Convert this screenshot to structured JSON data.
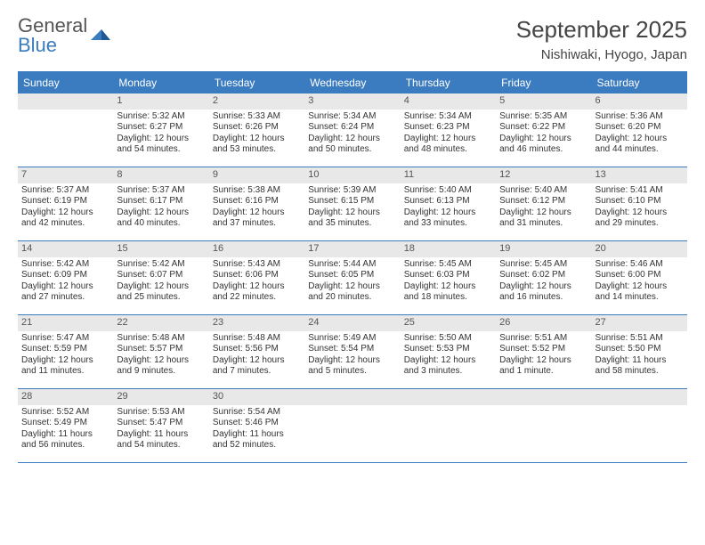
{
  "brand": {
    "word1": "General",
    "word2": "Blue"
  },
  "title": "September 2025",
  "location": "Nishiwaki, Hyogo, Japan",
  "colors": {
    "accent": "#3b7bbf",
    "daynum_bg": "#e8e8e8",
    "text": "#333333",
    "header_text": "#444444"
  },
  "weekdays": [
    "Sunday",
    "Monday",
    "Tuesday",
    "Wednesday",
    "Thursday",
    "Friday",
    "Saturday"
  ],
  "weeks": [
    [
      null,
      {
        "n": "1",
        "sr": "Sunrise: 5:32 AM",
        "ss": "Sunset: 6:27 PM",
        "dl1": "Daylight: 12 hours",
        "dl2": "and 54 minutes."
      },
      {
        "n": "2",
        "sr": "Sunrise: 5:33 AM",
        "ss": "Sunset: 6:26 PM",
        "dl1": "Daylight: 12 hours",
        "dl2": "and 53 minutes."
      },
      {
        "n": "3",
        "sr": "Sunrise: 5:34 AM",
        "ss": "Sunset: 6:24 PM",
        "dl1": "Daylight: 12 hours",
        "dl2": "and 50 minutes."
      },
      {
        "n": "4",
        "sr": "Sunrise: 5:34 AM",
        "ss": "Sunset: 6:23 PM",
        "dl1": "Daylight: 12 hours",
        "dl2": "and 48 minutes."
      },
      {
        "n": "5",
        "sr": "Sunrise: 5:35 AM",
        "ss": "Sunset: 6:22 PM",
        "dl1": "Daylight: 12 hours",
        "dl2": "and 46 minutes."
      },
      {
        "n": "6",
        "sr": "Sunrise: 5:36 AM",
        "ss": "Sunset: 6:20 PM",
        "dl1": "Daylight: 12 hours",
        "dl2": "and 44 minutes."
      }
    ],
    [
      {
        "n": "7",
        "sr": "Sunrise: 5:37 AM",
        "ss": "Sunset: 6:19 PM",
        "dl1": "Daylight: 12 hours",
        "dl2": "and 42 minutes."
      },
      {
        "n": "8",
        "sr": "Sunrise: 5:37 AM",
        "ss": "Sunset: 6:17 PM",
        "dl1": "Daylight: 12 hours",
        "dl2": "and 40 minutes."
      },
      {
        "n": "9",
        "sr": "Sunrise: 5:38 AM",
        "ss": "Sunset: 6:16 PM",
        "dl1": "Daylight: 12 hours",
        "dl2": "and 37 minutes."
      },
      {
        "n": "10",
        "sr": "Sunrise: 5:39 AM",
        "ss": "Sunset: 6:15 PM",
        "dl1": "Daylight: 12 hours",
        "dl2": "and 35 minutes."
      },
      {
        "n": "11",
        "sr": "Sunrise: 5:40 AM",
        "ss": "Sunset: 6:13 PM",
        "dl1": "Daylight: 12 hours",
        "dl2": "and 33 minutes."
      },
      {
        "n": "12",
        "sr": "Sunrise: 5:40 AM",
        "ss": "Sunset: 6:12 PM",
        "dl1": "Daylight: 12 hours",
        "dl2": "and 31 minutes."
      },
      {
        "n": "13",
        "sr": "Sunrise: 5:41 AM",
        "ss": "Sunset: 6:10 PM",
        "dl1": "Daylight: 12 hours",
        "dl2": "and 29 minutes."
      }
    ],
    [
      {
        "n": "14",
        "sr": "Sunrise: 5:42 AM",
        "ss": "Sunset: 6:09 PM",
        "dl1": "Daylight: 12 hours",
        "dl2": "and 27 minutes."
      },
      {
        "n": "15",
        "sr": "Sunrise: 5:42 AM",
        "ss": "Sunset: 6:07 PM",
        "dl1": "Daylight: 12 hours",
        "dl2": "and 25 minutes."
      },
      {
        "n": "16",
        "sr": "Sunrise: 5:43 AM",
        "ss": "Sunset: 6:06 PM",
        "dl1": "Daylight: 12 hours",
        "dl2": "and 22 minutes."
      },
      {
        "n": "17",
        "sr": "Sunrise: 5:44 AM",
        "ss": "Sunset: 6:05 PM",
        "dl1": "Daylight: 12 hours",
        "dl2": "and 20 minutes."
      },
      {
        "n": "18",
        "sr": "Sunrise: 5:45 AM",
        "ss": "Sunset: 6:03 PM",
        "dl1": "Daylight: 12 hours",
        "dl2": "and 18 minutes."
      },
      {
        "n": "19",
        "sr": "Sunrise: 5:45 AM",
        "ss": "Sunset: 6:02 PM",
        "dl1": "Daylight: 12 hours",
        "dl2": "and 16 minutes."
      },
      {
        "n": "20",
        "sr": "Sunrise: 5:46 AM",
        "ss": "Sunset: 6:00 PM",
        "dl1": "Daylight: 12 hours",
        "dl2": "and 14 minutes."
      }
    ],
    [
      {
        "n": "21",
        "sr": "Sunrise: 5:47 AM",
        "ss": "Sunset: 5:59 PM",
        "dl1": "Daylight: 12 hours",
        "dl2": "and 11 minutes."
      },
      {
        "n": "22",
        "sr": "Sunrise: 5:48 AM",
        "ss": "Sunset: 5:57 PM",
        "dl1": "Daylight: 12 hours",
        "dl2": "and 9 minutes."
      },
      {
        "n": "23",
        "sr": "Sunrise: 5:48 AM",
        "ss": "Sunset: 5:56 PM",
        "dl1": "Daylight: 12 hours",
        "dl2": "and 7 minutes."
      },
      {
        "n": "24",
        "sr": "Sunrise: 5:49 AM",
        "ss": "Sunset: 5:54 PM",
        "dl1": "Daylight: 12 hours",
        "dl2": "and 5 minutes."
      },
      {
        "n": "25",
        "sr": "Sunrise: 5:50 AM",
        "ss": "Sunset: 5:53 PM",
        "dl1": "Daylight: 12 hours",
        "dl2": "and 3 minutes."
      },
      {
        "n": "26",
        "sr": "Sunrise: 5:51 AM",
        "ss": "Sunset: 5:52 PM",
        "dl1": "Daylight: 12 hours",
        "dl2": "and 1 minute."
      },
      {
        "n": "27",
        "sr": "Sunrise: 5:51 AM",
        "ss": "Sunset: 5:50 PM",
        "dl1": "Daylight: 11 hours",
        "dl2": "and 58 minutes."
      }
    ],
    [
      {
        "n": "28",
        "sr": "Sunrise: 5:52 AM",
        "ss": "Sunset: 5:49 PM",
        "dl1": "Daylight: 11 hours",
        "dl2": "and 56 minutes."
      },
      {
        "n": "29",
        "sr": "Sunrise: 5:53 AM",
        "ss": "Sunset: 5:47 PM",
        "dl1": "Daylight: 11 hours",
        "dl2": "and 54 minutes."
      },
      {
        "n": "30",
        "sr": "Sunrise: 5:54 AM",
        "ss": "Sunset: 5:46 PM",
        "dl1": "Daylight: 11 hours",
        "dl2": "and 52 minutes."
      },
      null,
      null,
      null,
      null
    ]
  ]
}
